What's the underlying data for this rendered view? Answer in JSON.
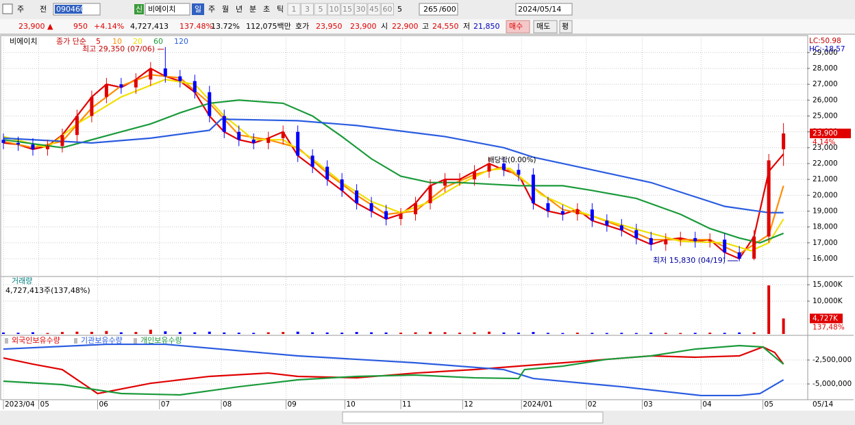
{
  "toolbar": {
    "market": "주",
    "type": "전",
    "code": "090460",
    "badge": "신",
    "name": "비에이치",
    "periods": [
      "일",
      "주",
      "월",
      "년",
      "분",
      "초",
      "틱"
    ],
    "intervals": [
      "1",
      "3",
      "5",
      "10",
      "15",
      "30",
      "45",
      "60"
    ],
    "count_sel": "5",
    "count": "265",
    "max": "/600",
    "date": "2024/05/14"
  },
  "quote": {
    "price": "23,900 ▲",
    "change": "950",
    "pct": "+4.14%",
    "volume": "4,727,413",
    "vol_ratio": "137.48%",
    "turnover": "13.72%",
    "amount": "112,075백만",
    "ask_label": "호가",
    "ask": "23,950",
    "bid": "23,900",
    "open_label": "시",
    "open": "22,900",
    "high_label": "고",
    "high": "24,550",
    "low_label": "저",
    "low": "21,850",
    "buy": "매수",
    "sell": "매도",
    "avg": "평"
  },
  "chart_data": [
    {
      "type": "candlestick",
      "stock_label": "비에이치",
      "ma_label": "종가 단순",
      "up_color": "#e00000",
      "down_color": "#0000ff",
      "xlim": [
        0,
        273
      ],
      "ylim": [
        14920,
        29940
      ],
      "yticks": [
        {
          "value": 16000,
          "label": "16,000"
        },
        {
          "value": 17000,
          "label": "17,000"
        },
        {
          "value": 18000,
          "label": "18,000"
        },
        {
          "value": 19000,
          "label": "19,000"
        },
        {
          "value": 20000,
          "label": "20,000"
        },
        {
          "value": 21000,
          "label": "21,000"
        },
        {
          "value": 22000,
          "label": "22,000"
        },
        {
          "value": 23000,
          "label": "23,000"
        },
        {
          "value": 24000,
          "label": "24,000"
        },
        {
          "value": 25000,
          "label": "25,000"
        },
        {
          "value": 26000,
          "label": "26,000"
        },
        {
          "value": 27000,
          "label": "27,000"
        },
        {
          "value": 28000,
          "label": "28,000"
        },
        {
          "value": 29000,
          "label": "29,000"
        }
      ],
      "x": [
        0,
        5,
        10,
        15,
        20,
        25,
        30,
        35,
        40,
        45,
        50,
        55,
        60,
        65,
        70,
        75,
        80,
        85,
        90,
        95,
        100,
        105,
        110,
        115,
        120,
        125,
        130,
        135,
        140,
        145,
        150,
        155,
        160,
        165,
        170,
        175,
        180,
        185,
        190,
        195,
        200,
        205,
        210,
        215,
        220,
        225,
        230,
        235,
        240,
        245,
        250,
        255,
        260,
        265
      ],
      "open": [
        23500,
        23300,
        23200,
        22900,
        23100,
        23800,
        25000,
        26200,
        27000,
        26800,
        27300,
        28000,
        27500,
        27200,
        26500,
        25000,
        24000,
        23500,
        23300,
        23600,
        24000,
        22500,
        21800,
        21000,
        20300,
        19500,
        19000,
        18500,
        18800,
        19500,
        20600,
        21000,
        21000,
        21500,
        22000,
        21600,
        21300,
        19500,
        19000,
        18800,
        19100,
        18400,
        18100,
        17800,
        17300,
        16900,
        17200,
        17300,
        17100,
        17200,
        16400,
        16000,
        17400,
        22900
      ],
      "high": [
        23900,
        23700,
        23600,
        23500,
        24200,
        25400,
        26600,
        27400,
        27400,
        27700,
        28400,
        29350,
        27900,
        27600,
        26900,
        25400,
        24400,
        23900,
        24000,
        24400,
        24400,
        22900,
        22200,
        21400,
        20700,
        19900,
        19400,
        19200,
        19900,
        21000,
        21400,
        21400,
        21900,
        22400,
        22400,
        22000,
        21700,
        19900,
        19400,
        19500,
        19500,
        18800,
        18500,
        18200,
        17700,
        17600,
        17700,
        17700,
        17600,
        17600,
        16800,
        17800,
        22600,
        24550
      ],
      "low": [
        22900,
        22800,
        22500,
        22500,
        22700,
        23400,
        24600,
        25800,
        26400,
        26400,
        26900,
        27100,
        26800,
        26100,
        24600,
        23600,
        23100,
        22900,
        22900,
        23200,
        22100,
        21400,
        20600,
        19900,
        19100,
        18600,
        18100,
        18100,
        18400,
        19100,
        20200,
        20600,
        20600,
        21100,
        21200,
        20900,
        19100,
        18600,
        18400,
        18400,
        18000,
        17700,
        17400,
        16900,
        16500,
        16500,
        16800,
        16700,
        16700,
        16000,
        15830,
        15900,
        17000,
        21850
      ],
      "close": [
        23300,
        23200,
        22900,
        23100,
        23800,
        25000,
        26200,
        27000,
        26800,
        27300,
        28000,
        27500,
        27200,
        26500,
        25000,
        24000,
        23500,
        23300,
        23600,
        24000,
        22500,
        21800,
        21000,
        20300,
        19500,
        19000,
        18500,
        18800,
        19500,
        20600,
        21000,
        21000,
        21500,
        22000,
        21600,
        21300,
        19500,
        19000,
        18800,
        19100,
        18400,
        18100,
        17800,
        17300,
        16900,
        17200,
        17300,
        17100,
        17200,
        16400,
        16000,
        17400,
        22200,
        23900
      ],
      "series": [
        {
          "name": "5",
          "color": "#e00000",
          "x": [
            0,
            5,
            10,
            15,
            20,
            25,
            30,
            35,
            40,
            45,
            50,
            55,
            60,
            65,
            70,
            75,
            80,
            85,
            90,
            95,
            100,
            105,
            110,
            115,
            120,
            125,
            130,
            135,
            140,
            145,
            150,
            155,
            160,
            165,
            170,
            175,
            180,
            185,
            190,
            195,
            200,
            205,
            210,
            215,
            220,
            225,
            230,
            235,
            240,
            245,
            250,
            255,
            260,
            265
          ],
          "values": [
            23300,
            23200,
            22900,
            23100,
            23800,
            25000,
            26200,
            27000,
            26800,
            27300,
            28000,
            27500,
            27200,
            26500,
            25000,
            24000,
            23500,
            23300,
            23600,
            24000,
            22500,
            21800,
            21000,
            20300,
            19500,
            19000,
            18500,
            18800,
            19500,
            20600,
            21000,
            21000,
            21500,
            22000,
            21600,
            21300,
            19500,
            19000,
            18800,
            19100,
            18400,
            18100,
            17800,
            17300,
            16900,
            17200,
            17300,
            17100,
            17200,
            16400,
            16000,
            17400,
            21500,
            22600
          ]
        },
        {
          "name": "10",
          "color": "#ff8c00",
          "x": [
            0,
            10,
            20,
            30,
            40,
            50,
            60,
            70,
            80,
            90,
            100,
            110,
            120,
            130,
            140,
            150,
            160,
            170,
            180,
            190,
            200,
            210,
            220,
            230,
            240,
            250,
            260,
            265
          ],
          "values": [
            23400,
            23000,
            23400,
            25500,
            26900,
            27600,
            27400,
            25800,
            23800,
            23500,
            23000,
            21400,
            20000,
            18800,
            19000,
            20500,
            21300,
            21800,
            20500,
            19100,
            18700,
            18000,
            17200,
            17200,
            17200,
            16300,
            17500,
            20600
          ]
        },
        {
          "name": "20",
          "color": "#f0e000",
          "x": [
            0,
            15,
            25,
            40,
            55,
            65,
            75,
            85,
            95,
            105,
            115,
            125,
            135,
            145,
            155,
            165,
            172,
            183,
            195,
            205,
            218,
            230,
            245,
            254,
            260,
            265
          ],
          "values": [
            23700,
            23000,
            24500,
            26200,
            27300,
            27000,
            25000,
            23500,
            23500,
            22300,
            20800,
            19600,
            18900,
            19600,
            20700,
            21600,
            21700,
            20000,
            19000,
            18400,
            17700,
            17100,
            17000,
            16500,
            17000,
            18500
          ]
        },
        {
          "name": "60",
          "color": "#1a9a3a",
          "x": [
            0,
            20,
            40,
            50,
            60,
            70,
            80,
            95,
            105,
            115,
            125,
            135,
            145,
            155,
            165,
            175,
            190,
            200,
            215,
            230,
            240,
            250,
            257,
            265
          ],
          "values": [
            23500,
            23000,
            24000,
            24500,
            25200,
            25800,
            26000,
            25800,
            25000,
            23700,
            22300,
            21200,
            20800,
            20800,
            20700,
            20600,
            20600,
            20300,
            19800,
            18800,
            17900,
            17300,
            17000,
            17600
          ]
        },
        {
          "name": "120",
          "color": "#2a5ce0",
          "x": [
            0,
            30,
            50,
            70,
            74,
            100,
            120,
            150,
            170,
            180,
            200,
            220,
            235,
            245,
            260,
            265
          ],
          "values": [
            23600,
            23300,
            23600,
            24100,
            24800,
            24700,
            24400,
            23700,
            23000,
            22400,
            21600,
            20800,
            19900,
            19300,
            18900,
            18900
          ]
        }
      ],
      "annotations": {
        "high": "최고 29,350 (07/06)",
        "low": "최저 15,830 (04/19)",
        "dividend": "배당락(0.00%)",
        "lc": "LC:50.98",
        "hc": "HC:-18.57",
        "last_price": "23,900",
        "last_pct": "4.14%"
      }
    },
    {
      "type": "bar",
      "title": "거래량",
      "subtitle": "4,727,413주(137,48%)",
      "last_label": "4,727K",
      "last_pct": "137,48%",
      "xlim": [
        0,
        273
      ],
      "ylim": [
        0,
        17300
      ],
      "yticks": [
        {
          "value": 10000,
          "label": "10,000K"
        },
        {
          "value": 15000,
          "label": "15,000K"
        }
      ],
      "x": [
        0,
        5,
        10,
        15,
        20,
        25,
        30,
        35,
        40,
        45,
        50,
        55,
        60,
        65,
        70,
        75,
        80,
        85,
        90,
        95,
        100,
        105,
        110,
        115,
        120,
        125,
        130,
        135,
        140,
        145,
        150,
        155,
        160,
        165,
        170,
        175,
        180,
        185,
        190,
        195,
        200,
        205,
        210,
        215,
        220,
        225,
        230,
        235,
        240,
        245,
        250,
        255,
        260,
        265
      ],
      "values": [
        450,
        380,
        520,
        300,
        600,
        700,
        650,
        900,
        500,
        600,
        1300,
        800,
        600,
        500,
        700,
        450,
        400,
        350,
        500,
        600,
        700,
        500,
        450,
        400,
        600,
        500,
        450,
        400,
        500,
        650,
        550,
        400,
        500,
        700,
        450,
        400,
        600,
        350,
        300,
        400,
        350,
        300,
        350,
        300,
        400,
        350,
        300,
        350,
        400,
        350,
        450,
        500,
        14800,
        4727
      ]
    },
    {
      "type": "line",
      "xlim": [
        0,
        273
      ],
      "ylim": [
        -6570000,
        -140000
      ],
      "yticks": [
        {
          "value": -5000000,
          "label": "-5,000,000"
        },
        {
          "value": -2500000,
          "label": "-2,500,000"
        }
      ],
      "xticks": [
        {
          "value": 0,
          "label": "2023/04"
        },
        {
          "value": 12,
          "label": "05"
        },
        {
          "value": 32,
          "label": "06"
        },
        {
          "value": 53,
          "label": "07"
        },
        {
          "value": 74,
          "label": "08"
        },
        {
          "value": 96,
          "label": "09"
        },
        {
          "value": 116,
          "label": "10"
        },
        {
          "value": 135,
          "label": "11"
        },
        {
          "value": 156,
          "label": "12"
        },
        {
          "value": 176,
          "label": "2024/01"
        },
        {
          "value": 198,
          "label": "02"
        },
        {
          "value": 217,
          "label": "03"
        },
        {
          "value": 237,
          "label": "04"
        },
        {
          "value": 258,
          "label": "05"
        }
      ],
      "x_end_label": "05/14",
      "series": [
        {
          "name": "외국인보유수량",
          "color": "#e00000",
          "x": [
            0,
            10,
            20,
            32,
            50,
            70,
            90,
            100,
            120,
            140,
            160,
            175,
            190,
            205,
            220,
            235,
            250,
            258,
            262,
            265
          ],
          "values": [
            -2290000,
            -2930000,
            -3500000,
            -6000000,
            -4930000,
            -4210000,
            -3860000,
            -4210000,
            -4360000,
            -3860000,
            -3500000,
            -3140000,
            -2790000,
            -2430000,
            -2070000,
            -2210000,
            -2070000,
            -1140000,
            -1710000,
            -2930000
          ]
        },
        {
          "name": "기관보유수량",
          "color": "#2a5ce0",
          "x": [
            0,
            35,
            55,
            100,
            140,
            170,
            180,
            210,
            237,
            250,
            257,
            265
          ],
          "values": [
            -1360000,
            -860000,
            -860000,
            -2070000,
            -2790000,
            -3500000,
            -4430000,
            -5290000,
            -6210000,
            -6210000,
            -6000000,
            -4570000
          ]
        },
        {
          "name": "개인보유수량",
          "color": "#1a9a3a",
          "x": [
            0,
            20,
            40,
            60,
            80,
            100,
            120,
            140,
            160,
            175,
            177,
            190,
            205,
            220,
            235,
            250,
            258,
            263,
            265
          ],
          "values": [
            -4710000,
            -5070000,
            -6000000,
            -6140000,
            -5290000,
            -4570000,
            -4210000,
            -4070000,
            -4360000,
            -4430000,
            -3500000,
            -3140000,
            -2430000,
            -2070000,
            -1360000,
            -1000000,
            -1140000,
            -2430000,
            -2930000
          ]
        }
      ]
    }
  ]
}
